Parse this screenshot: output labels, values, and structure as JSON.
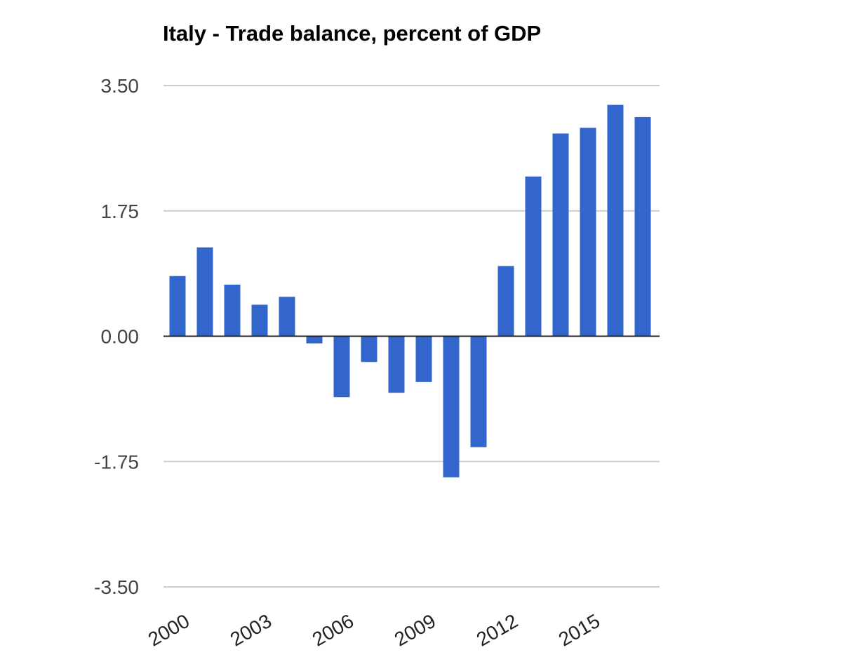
{
  "chart_data": {
    "type": "bar",
    "title": "Italy - Trade balance, percent of GDP",
    "xlabel": "",
    "ylabel": "",
    "x": [
      2000,
      2001,
      2002,
      2003,
      2004,
      2005,
      2006,
      2007,
      2008,
      2009,
      2010,
      2011,
      2012,
      2013,
      2014,
      2015,
      2016,
      2017
    ],
    "values": [
      0.84,
      1.24,
      0.72,
      0.44,
      0.55,
      -0.1,
      -0.85,
      -0.36,
      -0.79,
      -0.64,
      -1.97,
      -1.55,
      0.98,
      2.23,
      2.83,
      2.91,
      3.23,
      3.06
    ],
    "ylim": [
      -3.5,
      3.5
    ],
    "yticks": [
      "3.50",
      "1.75",
      "0.00",
      "-1.75",
      "-3.50"
    ],
    "ytick_values": [
      3.5,
      1.75,
      0,
      -1.75,
      -3.5
    ],
    "xtick_labels": [
      "2000",
      "2003",
      "2006",
      "2009",
      "2012",
      "2015"
    ],
    "xtick_years": [
      2000,
      2003,
      2006,
      2009,
      2012,
      2015
    ],
    "grid": true,
    "legend": "none",
    "colors": {
      "bar": "#3366cc",
      "grid": "#cccccc",
      "baseline": "#222222"
    }
  }
}
